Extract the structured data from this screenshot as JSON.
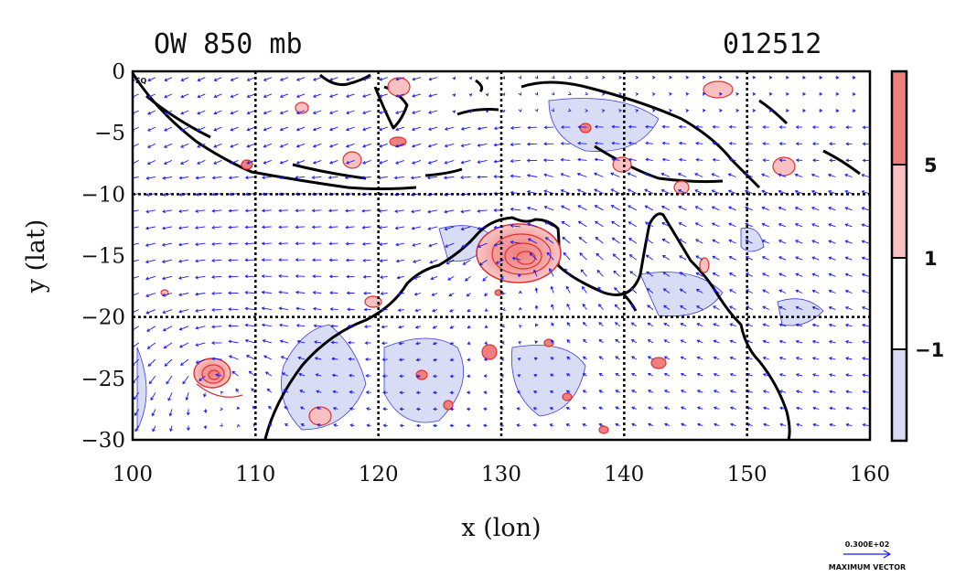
{
  "title_left": "OW 850 mb",
  "title_right": "012512",
  "eq_label": "EQ",
  "xlabel": "x (lon)",
  "ylabel": "y (lat)",
  "x_ticks": [
    100,
    110,
    120,
    130,
    140,
    150,
    160
  ],
  "y_ticks": [
    0,
    -5,
    -10,
    -15,
    -20,
    -25,
    -30
  ],
  "y_tick_labels": [
    "0",
    "−5",
    "−10",
    "−15",
    "−20",
    "−25",
    "−30"
  ],
  "x_range": [
    100,
    160
  ],
  "y_range": [
    -30,
    0
  ],
  "grid_x": [
    110,
    120,
    130,
    140,
    150
  ],
  "grid_y": [
    -10,
    -20
  ],
  "colorbar": {
    "levels": [
      "5",
      "1",
      "−1"
    ],
    "colors": [
      "#f08080",
      "#f8c0c0",
      "#ffffff",
      "#d8dcf4"
    ]
  },
  "reference_vector": {
    "value": "0.300E+02",
    "label": "MAXIMUM VECTOR"
  },
  "colors": {
    "vector": "#1a1aee",
    "coast": "#000000",
    "positive": "#e03030",
    "negative_fill": "#d8dcf4"
  },
  "features": [
    {
      "name": "vortex-gulf-of-carpentaria",
      "lon": 131.5,
      "lat": -15.5
    },
    {
      "name": "vortex-indian-ocean",
      "lon": 106.5,
      "lat": -24.8
    }
  ]
}
